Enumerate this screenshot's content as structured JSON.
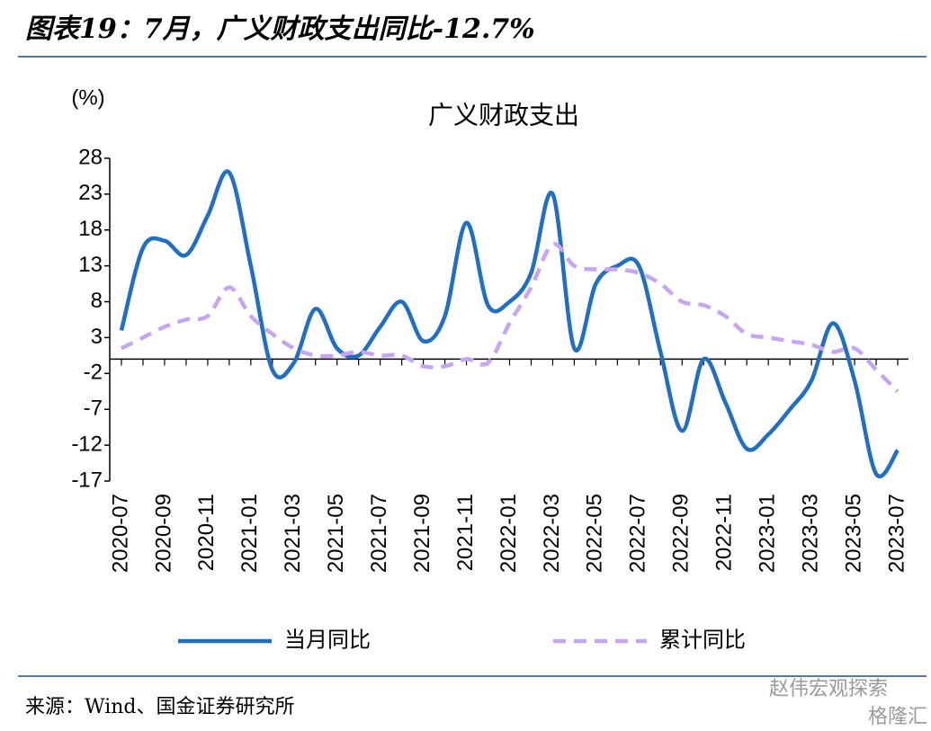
{
  "chart_data": {
    "type": "line",
    "header": "图表19：7月，广义财政支出同比-12.7%",
    "title": "广义财政支出",
    "y_label": "(%)",
    "source": "来源：Wind、国金证券研究所",
    "watermark": "赵伟宏观探索",
    "watermark2": "格隆汇",
    "categories": [
      "2020-07",
      null,
      "2020-09",
      null,
      "2020-11",
      null,
      "2021-01",
      null,
      "2021-03",
      null,
      "2021-05",
      null,
      "2021-07",
      null,
      "2021-09",
      null,
      "2021-11",
      null,
      "2022-01",
      null,
      "2022-03",
      null,
      "2022-05",
      null,
      "2022-07",
      null,
      "2022-09",
      null,
      "2022-11",
      null,
      "2023-01",
      null,
      "2023-03",
      null,
      "2023-05",
      null,
      "2023-07"
    ],
    "series": [
      {
        "name": "当月同比",
        "color": "#1f6fc5",
        "dash": false,
        "values": [
          4,
          15.5,
          16.5,
          14.5,
          20,
          26,
          13,
          -1.5,
          -0.5,
          7,
          1.5,
          0.5,
          4.5,
          8,
          2.5,
          6,
          19,
          7.5,
          8,
          12,
          23,
          1.5,
          10.5,
          13,
          13,
          1,
          -10,
          0,
          -6,
          -12.5,
          -10.5,
          -7,
          -3,
          5,
          -3,
          -16,
          -12.7
        ]
      },
      {
        "name": "累计同比",
        "color": "#c6a6f0",
        "dash": true,
        "values": [
          1.5,
          3,
          4.5,
          5.5,
          6,
          10,
          6,
          3.5,
          1.5,
          0.5,
          0.5,
          1,
          0.5,
          0.5,
          -1,
          -1,
          0,
          -0.5,
          5,
          10,
          16,
          13,
          12.5,
          12.5,
          12,
          10.5,
          8,
          7.5,
          6,
          3.5,
          3,
          2.5,
          2,
          1,
          1.5,
          -1.5,
          -4.5
        ]
      }
    ],
    "ylim": [
      -17,
      28
    ],
    "yticks": [
      28,
      23,
      18,
      13,
      8,
      3,
      -2,
      -7,
      -12,
      -17
    ],
    "grid": false
  }
}
